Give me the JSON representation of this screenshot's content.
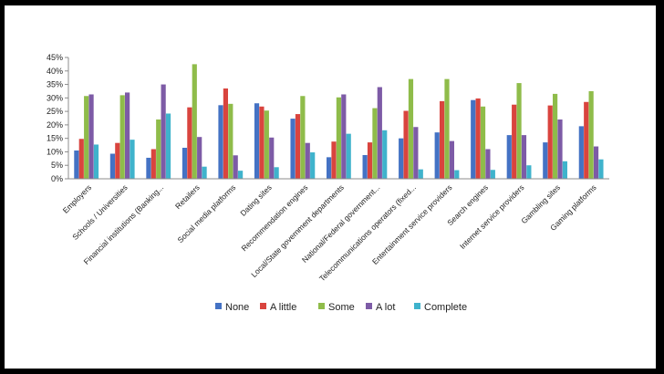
{
  "chart_data": {
    "type": "bar",
    "categories": [
      "Employers",
      "Schools / Universities",
      "Financial institutions (Banking...",
      "Retailers",
      "Social media platforms",
      "Dating sites",
      "Recommendation engines",
      "Local/State government departments",
      "National/Federal government...",
      "Telecommunications operators (fixed...",
      "Entertainment service providers",
      "Search engines",
      "Internet service providers",
      "Gambling sites",
      "Gaming platforms"
    ],
    "series": [
      {
        "name": "None",
        "color": "#4472C4",
        "values": [
          10.5,
          9.3,
          7.8,
          11.5,
          27.3,
          28.0,
          22.3,
          8.0,
          8.8,
          15.0,
          17.2,
          29.2,
          16.2,
          13.5,
          19.5
        ]
      },
      {
        "name": "A little",
        "color": "#D9443E",
        "values": [
          14.8,
          13.3,
          11.0,
          26.5,
          33.5,
          26.8,
          24.0,
          13.8,
          13.5,
          25.2,
          28.8,
          29.8,
          27.5,
          27.2,
          28.5
        ]
      },
      {
        "name": "Some",
        "color": "#8FBC4A",
        "values": [
          30.7,
          31.0,
          22.0,
          42.5,
          27.8,
          25.3,
          30.7,
          30.2,
          26.2,
          37.0,
          37.0,
          26.8,
          35.5,
          31.5,
          32.5
        ]
      },
      {
        "name": "A lot",
        "color": "#7D5BA6",
        "values": [
          31.3,
          32.0,
          35.0,
          15.5,
          8.7,
          15.3,
          13.3,
          31.3,
          34.0,
          19.2,
          14.0,
          11.0,
          16.2,
          22.0,
          12.0
        ]
      },
      {
        "name": "Complete",
        "color": "#3FB3CC",
        "values": [
          12.7,
          14.5,
          24.2,
          4.5,
          3.0,
          4.3,
          9.8,
          16.7,
          18.0,
          3.5,
          3.2,
          3.3,
          5.0,
          6.5,
          7.2
        ]
      }
    ],
    "y_ticks": [
      "0%",
      "5%",
      "10%",
      "15%",
      "20%",
      "25%",
      "30%",
      "35%",
      "40%",
      "45%"
    ],
    "ylim": [
      0,
      45
    ],
    "legend_position": "bottom",
    "grid": false
  }
}
